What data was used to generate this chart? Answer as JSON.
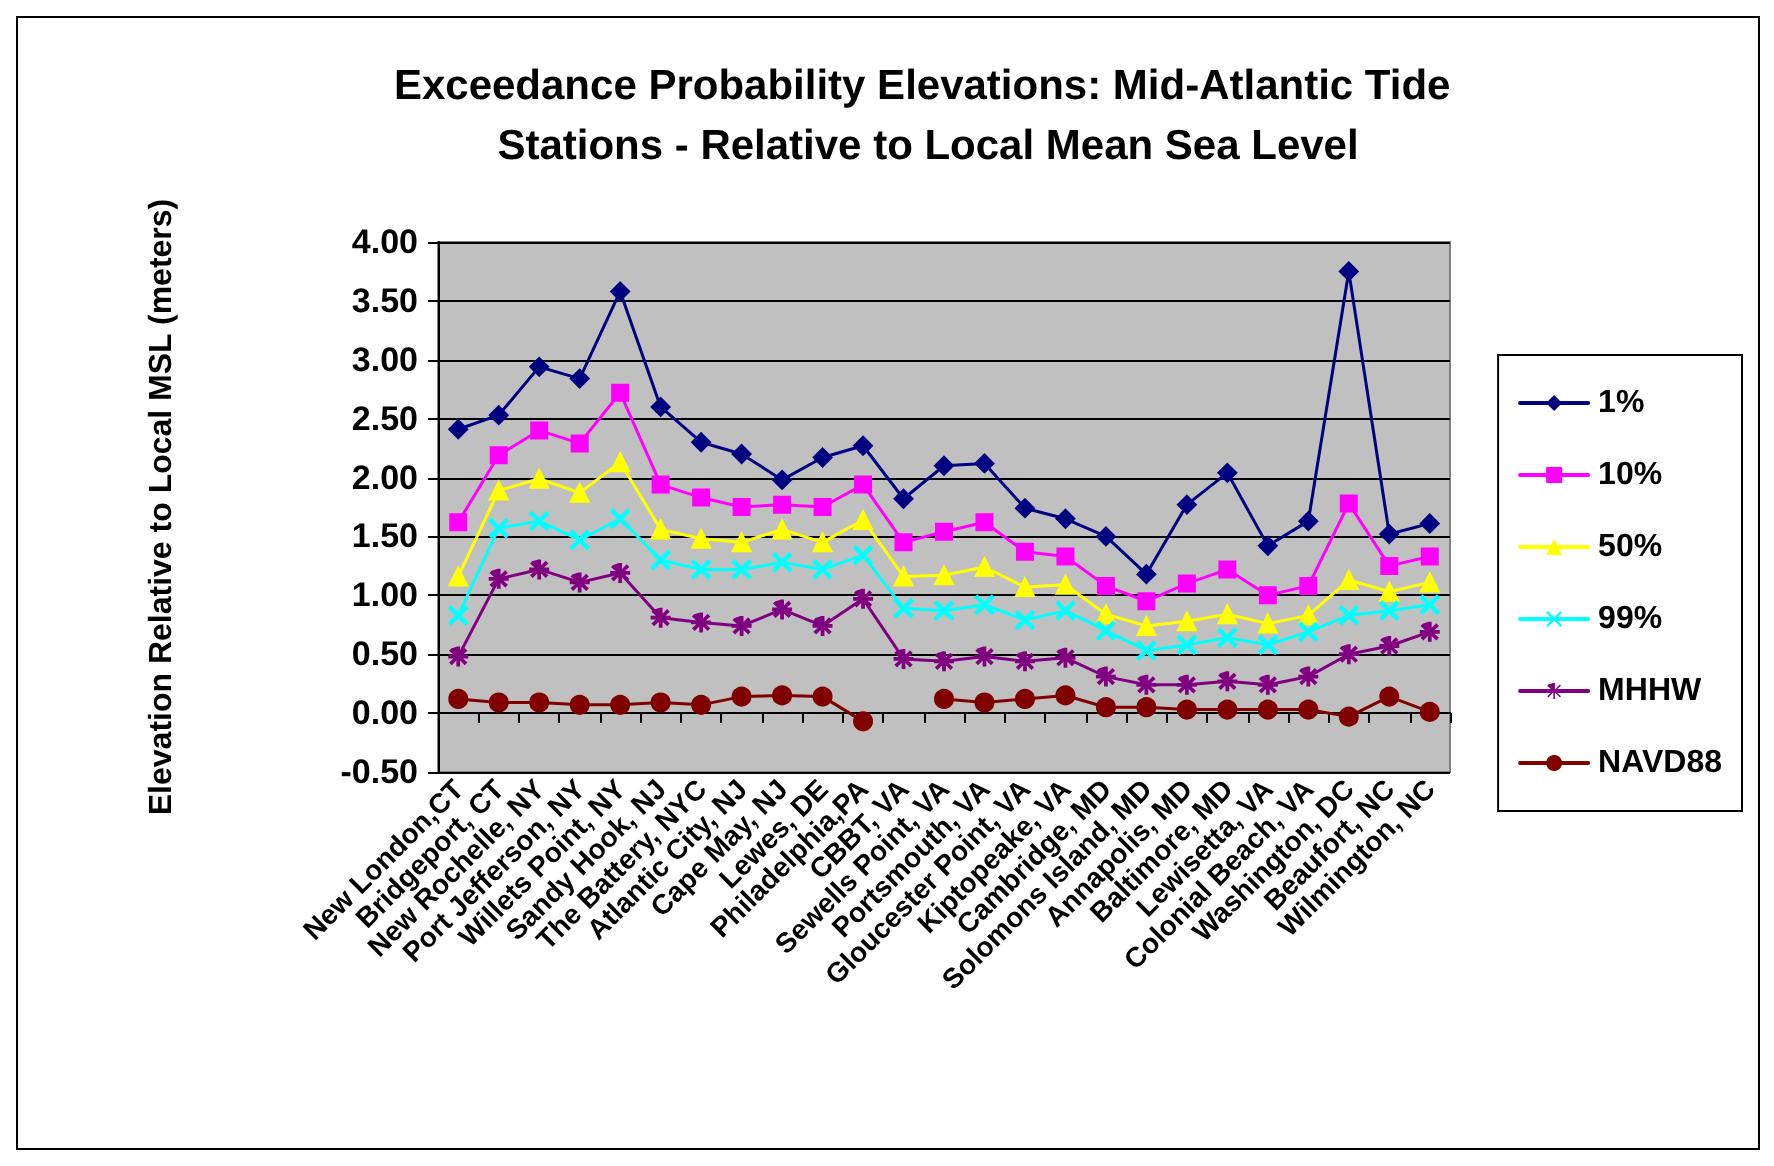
{
  "chart_data": {
    "type": "line",
    "title": "Exceedance Probability Elevations: Mid-Atlantic Tide Stations - Relative to Local Mean Sea Level",
    "ylabel": "Elevation Relative to Local MSL (meters)",
    "categories": [
      "New London,CT",
      "Bridgeport, CT",
      "New Rochelle, NY",
      "Port Jefferson, NY",
      "Willets Point, NY",
      "Sandy Hook, NJ",
      "The Battery, NYC",
      "Atlantic City, NJ",
      "Cape May, NJ",
      "Lewes, DE",
      "Philadelphia,PA",
      "CBBT, VA",
      "Sewells Point, VA",
      "Portsmouth, VA",
      "Gloucester Point, VA",
      "Kiptopeake, VA",
      "Cambridge, MD",
      "Solomons Island, MD",
      "Annapolis, MD",
      "Baltimore, MD",
      "Lewisetta, VA",
      "Colonial Beach, VA",
      "Washington, DC",
      "Beaufort, NC",
      "Wilmington, NC"
    ],
    "series": [
      {
        "name": "1%",
        "color": "#000080",
        "marker": "diamond",
        "values": [
          2.41,
          2.53,
          2.94,
          2.84,
          3.58,
          2.6,
          2.3,
          2.2,
          1.98,
          2.17,
          2.27,
          1.82,
          2.1,
          2.12,
          1.74,
          1.65,
          1.5,
          1.18,
          1.77,
          2.04,
          1.42,
          1.63,
          3.75,
          1.52,
          1.61
        ]
      },
      {
        "name": "10%",
        "color": "#ff00ff",
        "marker": "square",
        "values": [
          1.62,
          2.19,
          2.4,
          2.29,
          2.72,
          1.94,
          1.83,
          1.75,
          1.77,
          1.75,
          1.94,
          1.45,
          1.54,
          1.62,
          1.37,
          1.33,
          1.08,
          0.95,
          1.1,
          1.22,
          1.0,
          1.08,
          1.78,
          1.25,
          1.33
        ]
      },
      {
        "name": "50%",
        "color": "#ffff00",
        "marker": "triangle",
        "values": [
          1.16,
          1.89,
          1.99,
          1.87,
          2.13,
          1.56,
          1.48,
          1.45,
          1.56,
          1.45,
          1.64,
          1.16,
          1.17,
          1.24,
          1.07,
          1.09,
          0.84,
          0.74,
          0.78,
          0.84,
          0.76,
          0.83,
          1.13,
          1.03,
          1.11
        ]
      },
      {
        "name": "99%",
        "color": "#00ffff",
        "marker": "cross",
        "values": [
          0.83,
          1.57,
          1.63,
          1.47,
          1.65,
          1.3,
          1.22,
          1.22,
          1.28,
          1.22,
          1.34,
          0.89,
          0.87,
          0.92,
          0.79,
          0.87,
          0.7,
          0.53,
          0.58,
          0.64,
          0.58,
          0.69,
          0.83,
          0.87,
          0.92
        ]
      },
      {
        "name": "MHHW",
        "color": "#800080",
        "marker": "star",
        "values": [
          0.48,
          1.14,
          1.22,
          1.11,
          1.19,
          0.81,
          0.77,
          0.74,
          0.88,
          0.74,
          0.97,
          0.46,
          0.44,
          0.48,
          0.44,
          0.47,
          0.31,
          0.24,
          0.24,
          0.27,
          0.24,
          0.31,
          0.5,
          0.57,
          0.69
        ]
      },
      {
        "name": "NAVD88",
        "color": "#800000",
        "marker": "circle",
        "values": [
          0.12,
          0.09,
          0.09,
          0.07,
          0.07,
          0.09,
          0.07,
          0.14,
          0.15,
          0.14,
          -0.07,
          null,
          0.12,
          0.09,
          0.12,
          0.15,
          0.05,
          0.05,
          0.03,
          0.03,
          0.03,
          0.03,
          -0.03,
          0.14,
          0.01
        ]
      }
    ],
    "ylim": [
      -0.5,
      4
    ],
    "yticks": [
      {
        "value": -0.5,
        "label": "-0.50"
      },
      {
        "value": 0,
        "label": "0.00"
      },
      {
        "value": 0.5,
        "label": "0.50"
      },
      {
        "value": 1,
        "label": "1.00"
      },
      {
        "value": 1.5,
        "label": "1.50"
      },
      {
        "value": 2,
        "label": "2.00"
      },
      {
        "value": 2.5,
        "label": "2.50"
      },
      {
        "value": 3,
        "label": "3.00"
      },
      {
        "value": 3.5,
        "label": "3.50"
      },
      {
        "value": 4,
        "label": "4.00"
      }
    ],
    "grid": "y",
    "legend": "right"
  }
}
